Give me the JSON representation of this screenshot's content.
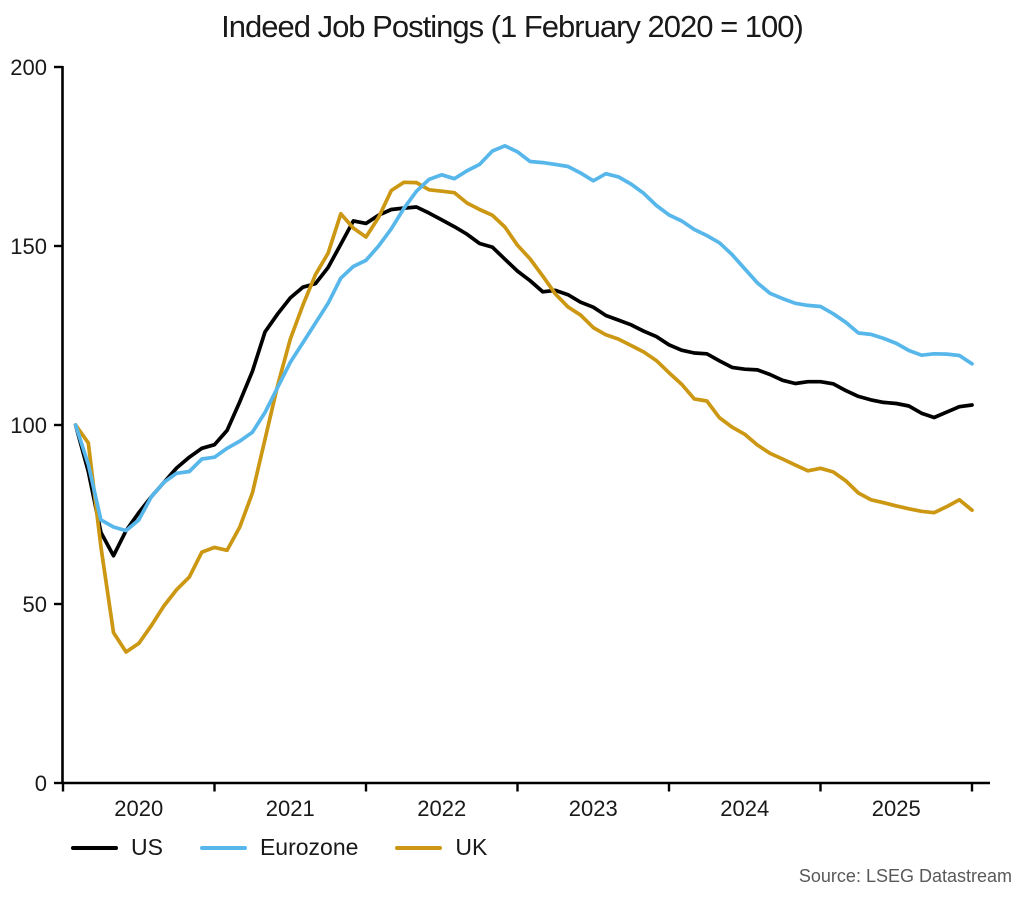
{
  "title": "Indeed Job Postings (1 February 2020 = 100)",
  "source": "Source: LSEG Datastream",
  "legend": {
    "position": "bottom-left",
    "items": [
      {
        "label": "US",
        "color": "#000000"
      },
      {
        "label": "Eurozone",
        "color": "#57B7EB"
      },
      {
        "label": "UK",
        "color": "#CC9712"
      }
    ]
  },
  "chart_data": {
    "type": "line",
    "title": "Indeed Job Postings (1 February 2020 = 100)",
    "xlabel": "",
    "ylabel": "",
    "grid": false,
    "ylim": [
      0,
      200
    ],
    "yticks": [
      0,
      50,
      100,
      150,
      200
    ],
    "xtick_year_boundaries": [
      2020,
      2021,
      2022,
      2023,
      2024,
      2025,
      2026
    ],
    "xtick_labels": [
      "2020",
      "2021",
      "2022",
      "2023",
      "2024",
      "2025"
    ],
    "x_unit": "month",
    "x_start": "2020-02",
    "x_end": "2026-01",
    "index_note": "1 February 2020 = 100",
    "series": [
      {
        "name": "US",
        "color": "#000000",
        "values": [
          100,
          87,
          70,
          63.5,
          70.5,
          75.5,
          80,
          84,
          88,
          91,
          93.5,
          94.5,
          98.5,
          106.5,
          115,
          126,
          131,
          135.5,
          138.5,
          139.5,
          144,
          150.5,
          157,
          156.3,
          158.6,
          160.2,
          160.6,
          160.9,
          159.2,
          157.3,
          155.4,
          153.3,
          150.7,
          149.7,
          146.3,
          143,
          140.3,
          137.2,
          137.6,
          136.4,
          134.3,
          132.9,
          130.6,
          129.3,
          128,
          126.2,
          124.7,
          122.4,
          120.9,
          120.1,
          119.9,
          117.9,
          116.1,
          115.6,
          115.4,
          114.1,
          112.5,
          111.6,
          112.1,
          112.1,
          111.5,
          109.6,
          108,
          107,
          106.3,
          106,
          105.3,
          103.3,
          102.1,
          103.6,
          105.1,
          105.6
        ]
      },
      {
        "name": "Eurozone",
        "color": "#57B7EB",
        "values": [
          100,
          89,
          73.5,
          71.5,
          70.5,
          73.5,
          80,
          84,
          86.5,
          87,
          90.5,
          91,
          93.5,
          95.5,
          98,
          103.5,
          110.5,
          117.5,
          123,
          128.5,
          134,
          141,
          144.3,
          146,
          150,
          154.8,
          160.5,
          165.3,
          168.6,
          169.9,
          168.8,
          171,
          172.8,
          176.5,
          178,
          176.3,
          173.6,
          173.3,
          172.8,
          172.2,
          170.4,
          168.2,
          170.2,
          169.3,
          167.3,
          164.7,
          161.3,
          158.7,
          157,
          154.6,
          152.9,
          150.9,
          147.6,
          143.6,
          139.7,
          136.8,
          135.3,
          134,
          133.4,
          133.1,
          131.1,
          128.7,
          125.7,
          125.3,
          124.2,
          122.8,
          120.8,
          119.5,
          119.9,
          119.8,
          119.4,
          117.1
        ]
      },
      {
        "name": "UK",
        "color": "#CC9712",
        "values": [
          100,
          95,
          66,
          42,
          36.6,
          39,
          44,
          49.5,
          54,
          57.5,
          64.5,
          65.8,
          65,
          71.5,
          81,
          96,
          111,
          124,
          133.5,
          142,
          148,
          159,
          155,
          152.5,
          158,
          165.5,
          167.8,
          167.7,
          165.7,
          165.3,
          164.9,
          162,
          160.2,
          158.6,
          155.3,
          150.2,
          146.4,
          141.6,
          136.6,
          133,
          130.7,
          127.2,
          125.2,
          124,
          122.2,
          120.4,
          118,
          114.6,
          111.4,
          107.3,
          106.7,
          102,
          99.4,
          97.4,
          94.4,
          92.1,
          90.5,
          88.8,
          87.2,
          87.9,
          86.9,
          84.4,
          81,
          79.1,
          78.3,
          77.4,
          76.6,
          75.9,
          75.5,
          77.2,
          79.1,
          76.2
        ]
      }
    ]
  }
}
